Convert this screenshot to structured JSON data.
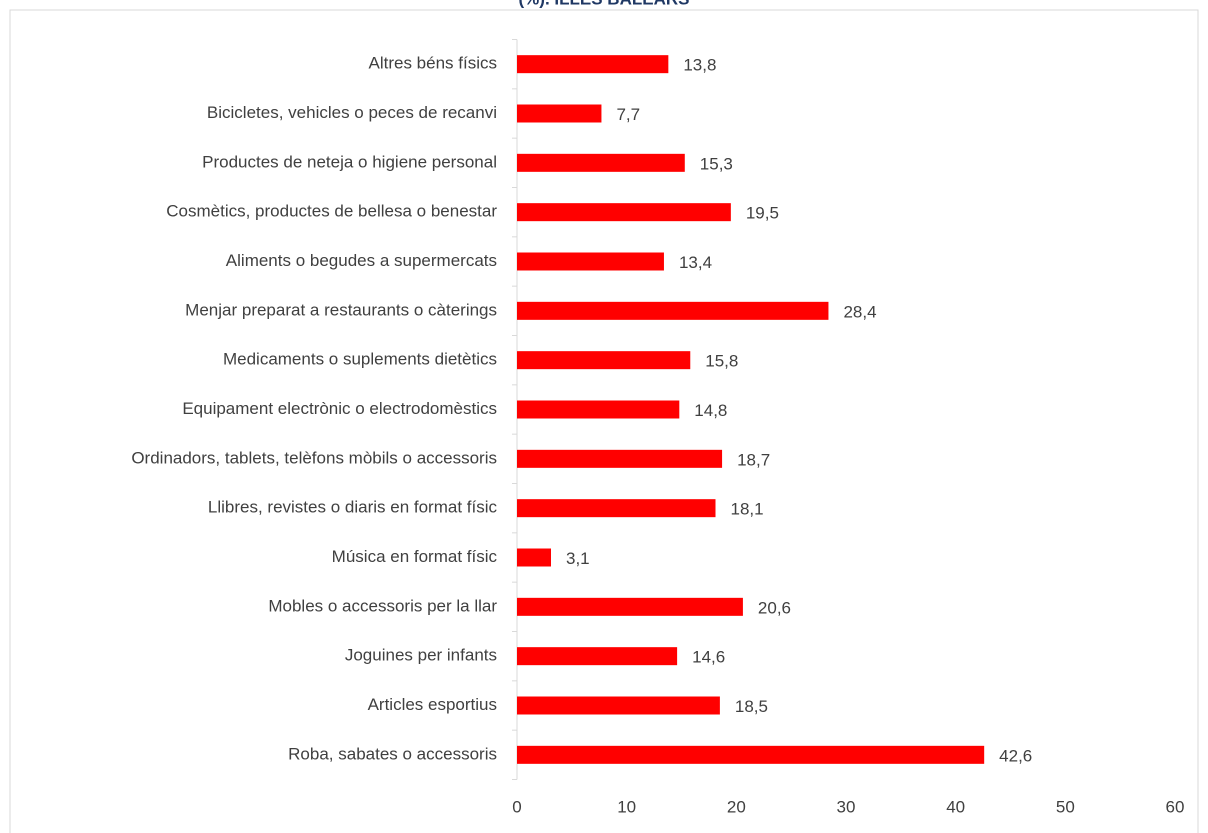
{
  "chart_data": {
    "type": "bar",
    "orientation": "horizontal",
    "title": "(%). ILLES BALEARS",
    "categories": [
      "Altres béns físics",
      "Bicicletes, vehicles o peces de recanvi",
      "Productes de neteja o higiene personal",
      "Cosmètics, productes de bellesa o benestar",
      "Aliments o begudes a supermercats",
      "Menjar preparat a restaurants o càterings",
      "Medicaments o suplements dietètics",
      "Equipament electrònic o electrodomèstics",
      "Ordinadors, tablets, telèfons mòbils o accessoris",
      "Llibres, revistes o diaris en format físic",
      "Música en format físic",
      "Mobles o accessoris per la llar",
      "Joguines per infants",
      "Articles esportius",
      "Roba, sabates o accessoris"
    ],
    "values": [
      13.8,
      7.7,
      15.3,
      19.5,
      13.4,
      28.4,
      15.8,
      14.8,
      18.7,
      18.1,
      3.1,
      20.6,
      14.6,
      18.5,
      42.6
    ],
    "value_labels": [
      "13,8",
      "7,7",
      "15,3",
      "19,5",
      "13,4",
      "28,4",
      "15,8",
      "14,8",
      "18,7",
      "18,1",
      "3,1",
      "20,6",
      "14,6",
      "18,5",
      "42,6"
    ],
    "color": "#ff0000",
    "xlim": [
      0,
      60
    ],
    "xticks": [
      0,
      10,
      20,
      30,
      40,
      50,
      60
    ],
    "grid": false
  }
}
